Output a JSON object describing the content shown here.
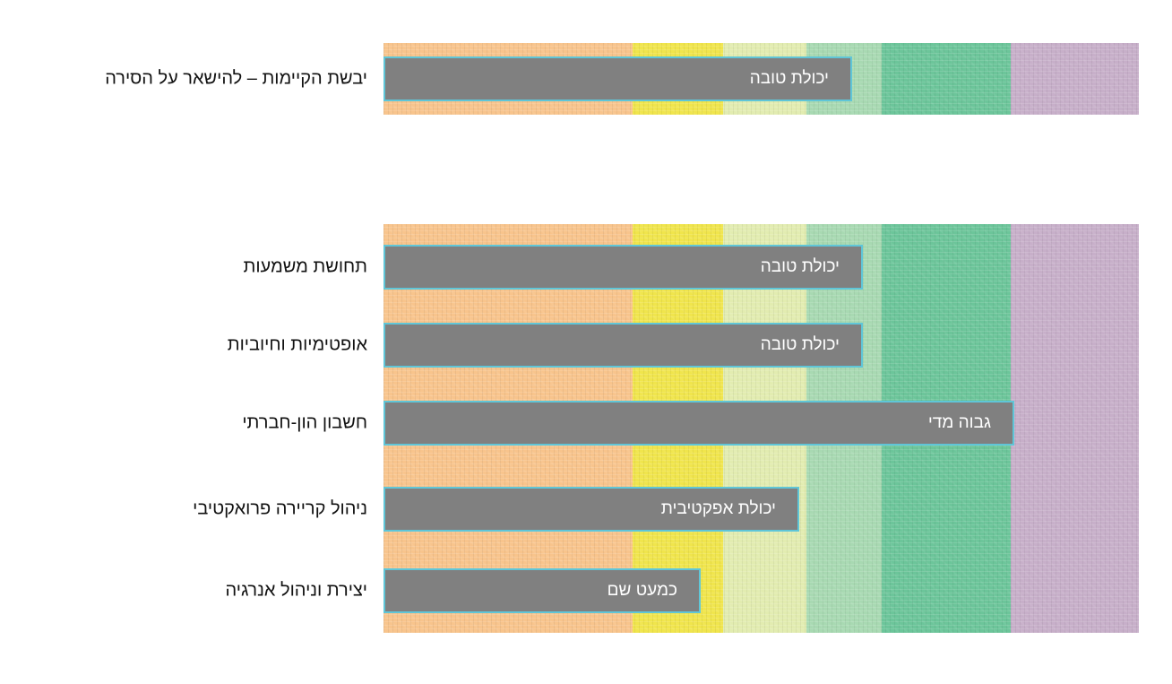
{
  "chart_data": {
    "type": "bar",
    "orientation": "horizontal",
    "title": "",
    "xlabel": "",
    "ylabel": "",
    "levels": [
      {
        "name": "",
        "from": 0,
        "to": 3.3,
        "color": "#f8c48c"
      },
      {
        "name": "",
        "from": 3.3,
        "to": 4.5,
        "color": "#f0e54c"
      },
      {
        "name": "",
        "from": 4.5,
        "to": 5.6,
        "color": "#e2ecb0"
      },
      {
        "name": "",
        "from": 5.6,
        "to": 6.6,
        "color": "#a8d9b2"
      },
      {
        "name": "",
        "from": 6.6,
        "to": 8.3,
        "color": "#6cc59a"
      },
      {
        "name": "",
        "from": 8.3,
        "to": 10,
        "color": "#c7afc9"
      }
    ],
    "xlim": [
      0,
      10
    ],
    "groups": [
      {
        "rows": [
          {
            "label": "יבשת הקיימות – להישאר על הסירה",
            "value": 6.2,
            "value_label": "יכולת טובה"
          }
        ]
      },
      {
        "rows": [
          {
            "label": "תחושת משמעות",
            "value": 6.35,
            "value_label": "יכולת טובה"
          },
          {
            "label": "אופטימיות וחיוביות",
            "value": 6.35,
            "value_label": "יכולת טובה"
          },
          {
            "label": "חשבון הון-חברתי",
            "value": 8.35,
            "value_label": "גבוה מדי"
          },
          {
            "label": "ניהול קריירה פרואקטיבי",
            "value": 5.5,
            "value_label": "יכולת אפקטיבית"
          },
          {
            "label": "יצירת וניהול אנרגיה",
            "value": 4.2,
            "value_label": "כמעט שם"
          }
        ]
      }
    ]
  },
  "colors": {
    "bar_fill": "#808080",
    "bar_border": "#5fc6d8",
    "bar_text": "#ffffff",
    "row_label_text": "#111111"
  }
}
